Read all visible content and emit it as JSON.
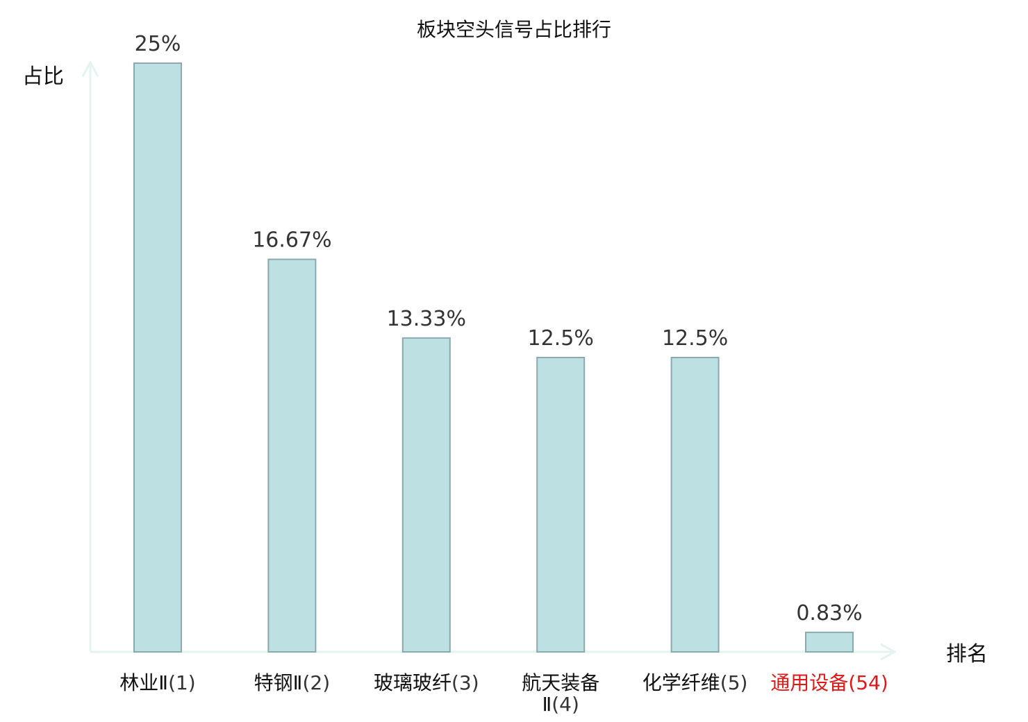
{
  "chart_data": {
    "type": "bar",
    "title": "板块空头信号占比排行",
    "xlabel": "排名",
    "ylabel": "占比",
    "categories": [
      {
        "name": "林业Ⅱ",
        "rank": "(1)",
        "highlight": false
      },
      {
        "name": "特钢Ⅱ",
        "rank": "(2)",
        "highlight": false
      },
      {
        "name": "玻璃玻纤",
        "rank": "(3)",
        "highlight": false
      },
      {
        "name": "航天装备",
        "name_line2": "Ⅱ",
        "rank": "(4)",
        "highlight": false
      },
      {
        "name": "化学纤维",
        "rank": "(5)",
        "highlight": false
      },
      {
        "name": "通用设备",
        "rank": "(54)",
        "highlight": true
      }
    ],
    "values": [
      25,
      16.67,
      13.33,
      12.5,
      12.5,
      0.83
    ],
    "value_labels": [
      "25%",
      "16.67%",
      "13.33%",
      "12.5%",
      "12.5%",
      "0.83%"
    ],
    "ylim": [
      0,
      25
    ],
    "grid": false,
    "colors": {
      "bar_fill": "#bde0e2",
      "bar_stroke": "#8aa9ad",
      "axis": "#e2f3f0",
      "highlight": "#e01818"
    }
  }
}
